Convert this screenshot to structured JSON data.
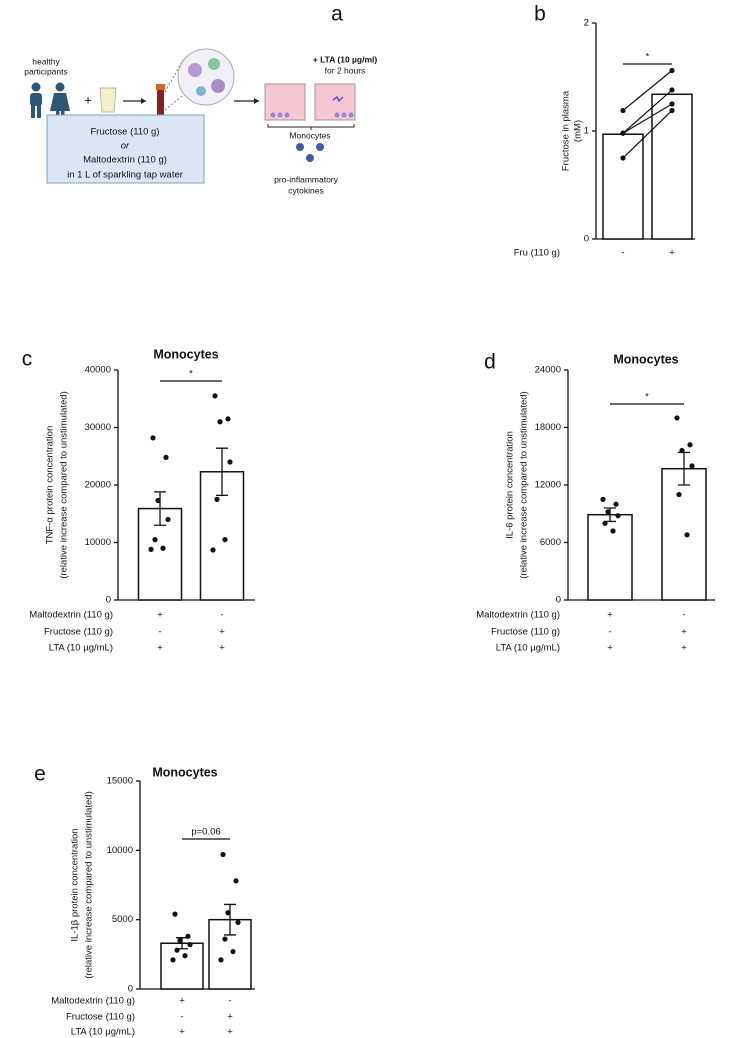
{
  "diagram": {
    "panel_label": "a",
    "participants": [
      "healthy",
      "participants"
    ],
    "plus": "+",
    "box": [
      "Fructose (110 g)",
      "or",
      "Maltodextrin (110 g)",
      "in 1 L of sparkling tap water"
    ],
    "treatment": [
      "+ LTA (10 µg/ml)",
      "for 2 hours"
    ],
    "cells": "Monocytes",
    "readout": [
      "pro-inflammatory",
      "cytokines"
    ]
  },
  "chart_data": [
    {
      "type": "bar",
      "panel_label": "b",
      "y_label": [
        "Fructose in plasma",
        "(mM)"
      ],
      "ylim": [
        0,
        2
      ],
      "yticks": [
        0,
        1,
        2
      ],
      "paired": true,
      "conditions": [
        {
          "label": "Fru (110 g)",
          "signs": [
            "-",
            "+"
          ]
        }
      ],
      "values": [
        0.97,
        1.34
      ],
      "points": [
        [
          1.19,
          0.98,
          0.98,
          0.75
        ],
        [
          1.56,
          1.38,
          1.25,
          1.19
        ]
      ],
      "annotation": "*"
    },
    {
      "type": "bar",
      "panel_label": "c",
      "title": "Monocytes",
      "y_label": [
        "TNF-α protein concentration",
        "(relative increase compared to unstimulated)"
      ],
      "ylim": [
        0,
        40000
      ],
      "yticks": [
        0,
        10000,
        20000,
        30000,
        40000
      ],
      "conditions": [
        {
          "label": "Maltodextrin (110 g)",
          "signs": [
            "+",
            "-"
          ]
        },
        {
          "label": "Fructose (110 g)",
          "signs": [
            "-",
            "+"
          ]
        },
        {
          "label": "LTA (10 µg/mL)",
          "signs": [
            "+",
            "+"
          ]
        }
      ],
      "values": [
        15900,
        22300
      ],
      "errors": [
        2900,
        4100
      ],
      "points": [
        [
          28200,
          24800,
          17300,
          14000,
          10500,
          9000,
          8800
        ],
        [
          35500,
          31500,
          31000,
          24000,
          17500,
          10500,
          8700
        ]
      ],
      "annotation": "*"
    },
    {
      "type": "bar",
      "panel_label": "d",
      "title": "Monocytes",
      "y_label": [
        "IL-6 protein concentration",
        "(relative increase compared to unstimulated)"
      ],
      "ylim": [
        0,
        24000
      ],
      "yticks": [
        0,
        6000,
        12000,
        18000,
        24000
      ],
      "conditions": [
        {
          "label": "Maltodextrin (110 g)",
          "signs": [
            "+",
            "-"
          ]
        },
        {
          "label": "Fructose (110 g)",
          "signs": [
            "-",
            "+"
          ]
        },
        {
          "label": "LTA (10 µg/mL)",
          "signs": [
            "+",
            "+"
          ]
        }
      ],
      "values": [
        8900,
        13700
      ],
      "errors": [
        700,
        1700
      ],
      "points": [
        [
          10500,
          10000,
          9200,
          8800,
          8000,
          7200
        ],
        [
          19000,
          16200,
          15600,
          14000,
          11000,
          6800
        ]
      ],
      "annotation": "*"
    },
    {
      "type": "bar",
      "panel_label": "e",
      "title": "Monocytes",
      "y_label": [
        "IL-1β protein concentration",
        "(relative increase compared to unstimulated)"
      ],
      "ylim": [
        0,
        15000
      ],
      "yticks": [
        0,
        5000,
        10000,
        15000
      ],
      "conditions": [
        {
          "label": "Maltodextrin (110 g)",
          "signs": [
            "+",
            "-"
          ]
        },
        {
          "label": "Fructose (110 g)",
          "signs": [
            "-",
            "+"
          ]
        },
        {
          "label": "LTA (10 µg/mL)",
          "signs": [
            "+",
            "+"
          ]
        }
      ],
      "values": [
        3300,
        5000
      ],
      "errors": [
        400,
        1100
      ],
      "points": [
        [
          5400,
          3800,
          3500,
          3200,
          2800,
          2400,
          2100
        ],
        [
          9700,
          7800,
          5500,
          4800,
          3600,
          2700,
          2100
        ]
      ],
      "annotation": "p=0.06"
    }
  ]
}
